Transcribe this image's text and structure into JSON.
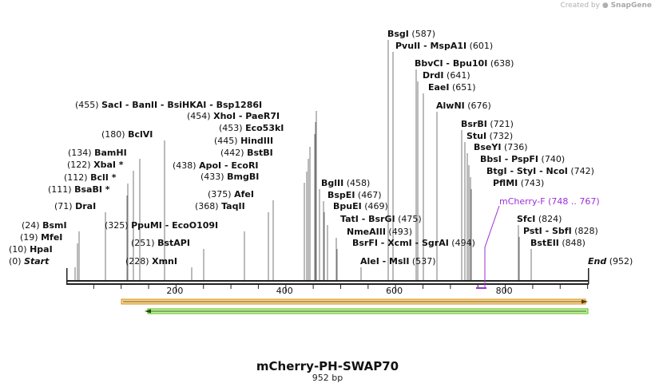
{
  "credit": {
    "prefix": "Created by",
    "brand": "SnapGene"
  },
  "map": {
    "name": "mCherry-PH-SWAP70",
    "length_label": "952 bp",
    "length": 952,
    "start_label": "Start",
    "start_pos": "(0)",
    "end_label": "End",
    "end_pos": "(952)",
    "ticks": [
      200,
      400,
      600,
      800
    ]
  },
  "features": [
    {
      "name": "mCherry-F",
      "range": "(748 .. 767)",
      "color": "#9b30d9"
    }
  ],
  "sites": [
    {
      "pos": "(10)",
      "names": "HpaI",
      "row": "l0"
    },
    {
      "pos": "(19)",
      "names": "MfeI",
      "row": "l1"
    },
    {
      "pos": "(24)",
      "names": "BsmI",
      "row": "l2"
    },
    {
      "pos": "(71)",
      "names": "DraI",
      "row": "l3"
    },
    {
      "pos": "(111)",
      "names": "BsaBI *",
      "row": "l4"
    },
    {
      "pos": "(112)",
      "names": "BclI *",
      "row": "l5"
    },
    {
      "pos": "(122)",
      "names": "XbaI *",
      "row": "l6"
    },
    {
      "pos": "(134)",
      "names": "BamHI",
      "row": "l7"
    },
    {
      "pos": "(180)",
      "names": "BclVI",
      "row": "l8"
    },
    {
      "pos": "(228)",
      "names": "XmnI",
      "row": "m0"
    },
    {
      "pos": "(251)",
      "names": "BstAPI",
      "row": "m1"
    },
    {
      "pos": "(325)",
      "names": "PpuMI  -  EcoO109I",
      "row": "m2"
    },
    {
      "pos": "(368)",
      "names": "TaqII",
      "row": "m3"
    },
    {
      "pos": "(375)",
      "names": "AfeI",
      "row": "m4"
    },
    {
      "pos": "(433)",
      "names": "BmgBI",
      "row": "m5"
    },
    {
      "pos": "(438)",
      "names": "ApoI  -  EcoRI",
      "row": "m6"
    },
    {
      "pos": "(442)",
      "names": "BstBI",
      "row": "m7"
    },
    {
      "pos": "(445)",
      "names": "HindIII",
      "row": "m8"
    },
    {
      "pos": "(453)",
      "names": "Eco53kI",
      "row": "m9"
    },
    {
      "pos": "(454)",
      "names": "XhoI  -  PaeR7I",
      "row": "m10"
    },
    {
      "pos": "(455)",
      "names": "SacI  -  BanII  -  BsiHKAI  -  Bsp1286I",
      "row": "m11"
    },
    {
      "pos": "(458)",
      "names": "BglII",
      "row": "r0"
    },
    {
      "pos": "(467)",
      "names": "BspEI",
      "row": "r1"
    },
    {
      "pos": "(469)",
      "names": "BpuEI",
      "row": "r2"
    },
    {
      "pos": "(475)",
      "names": "TatI  -  BsrGI",
      "row": "r3"
    },
    {
      "pos": "(493)",
      "names": "NmeAIII",
      "row": "r4"
    },
    {
      "pos": "(494)",
      "names": "BsrFI  -  XcmI  -  SgrAI",
      "row": "r5"
    },
    {
      "pos": "(537)",
      "names": "AleI  -  MslI",
      "row": "r6"
    },
    {
      "pos": "(587)",
      "names": "BsgI",
      "row": "t0"
    },
    {
      "pos": "(601)",
      "names": "PvuII  -  MspA1I",
      "row": "t1"
    },
    {
      "pos": "(638)",
      "names": "BbvCI  -  Bpu10I",
      "row": "t2"
    },
    {
      "pos": "(641)",
      "names": "DrdI",
      "row": "t3"
    },
    {
      "pos": "(651)",
      "names": "EaeI",
      "row": "t4"
    },
    {
      "pos": "(676)",
      "names": "AlwNI",
      "row": "t5"
    },
    {
      "pos": "(721)",
      "names": "BsrBI",
      "row": "t6"
    },
    {
      "pos": "(732)",
      "names": "StuI",
      "row": "t7"
    },
    {
      "pos": "(736)",
      "names": "BseYI",
      "row": "t8"
    },
    {
      "pos": "(740)",
      "names": "BbsI  -  PspFI",
      "row": "t9"
    },
    {
      "pos": "(742)",
      "names": "BtgI  -  StyI  -  NcoI",
      "row": "t10"
    },
    {
      "pos": "(743)",
      "names": "PflMI",
      "row": "t11"
    },
    {
      "pos": "(824)",
      "names": "SfcI",
      "row": "e0"
    },
    {
      "pos": "(828)",
      "names": "PstI  -  SbfI",
      "row": "e1"
    },
    {
      "pos": "(848)",
      "names": "BstEII",
      "row": "e2"
    }
  ]
}
